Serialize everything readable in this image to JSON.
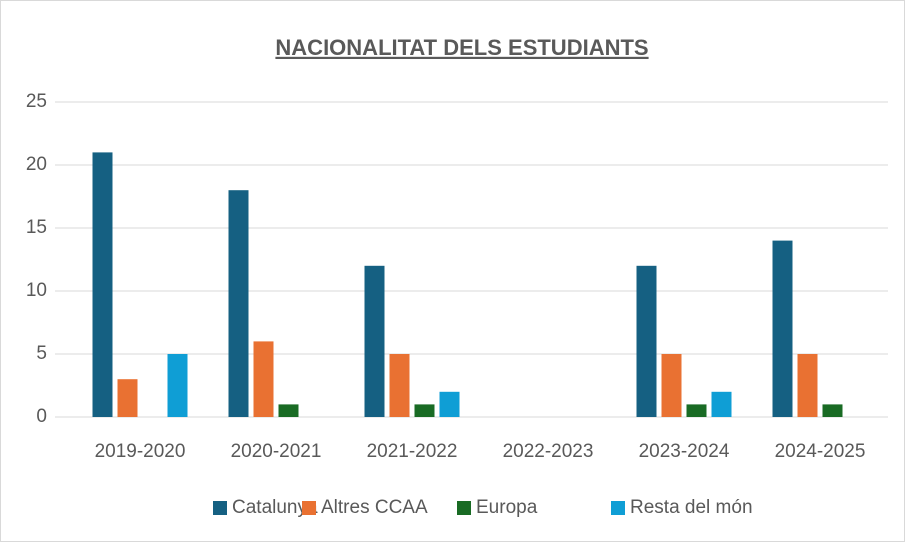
{
  "chart_data": {
    "type": "bar",
    "title": "NACIONALITAT DELS ESTUDIANTS",
    "categories": [
      "2019-2020",
      "2020-2021",
      "2021-2022",
      "2022-2023",
      "2023-2024",
      "2024-2025"
    ],
    "series": [
      {
        "name": "Catalunya",
        "color": "#156082",
        "values": [
          21,
          18,
          12,
          0,
          12,
          14
        ]
      },
      {
        "name": "Altres CCAA",
        "color": "#e97132",
        "values": [
          3,
          6,
          5,
          0,
          5,
          5
        ]
      },
      {
        "name": "Europa",
        "color": "#196b24",
        "values": [
          0,
          1,
          1,
          0,
          1,
          1
        ]
      },
      {
        "name": "Resta del món",
        "color": "#0f9ed5",
        "values": [
          5,
          0,
          2,
          0,
          2,
          0
        ]
      }
    ],
    "ylim": [
      0,
      25
    ],
    "yticks": [
      0,
      5,
      10,
      15,
      20,
      25
    ],
    "grid": true,
    "legend": "bottom"
  }
}
